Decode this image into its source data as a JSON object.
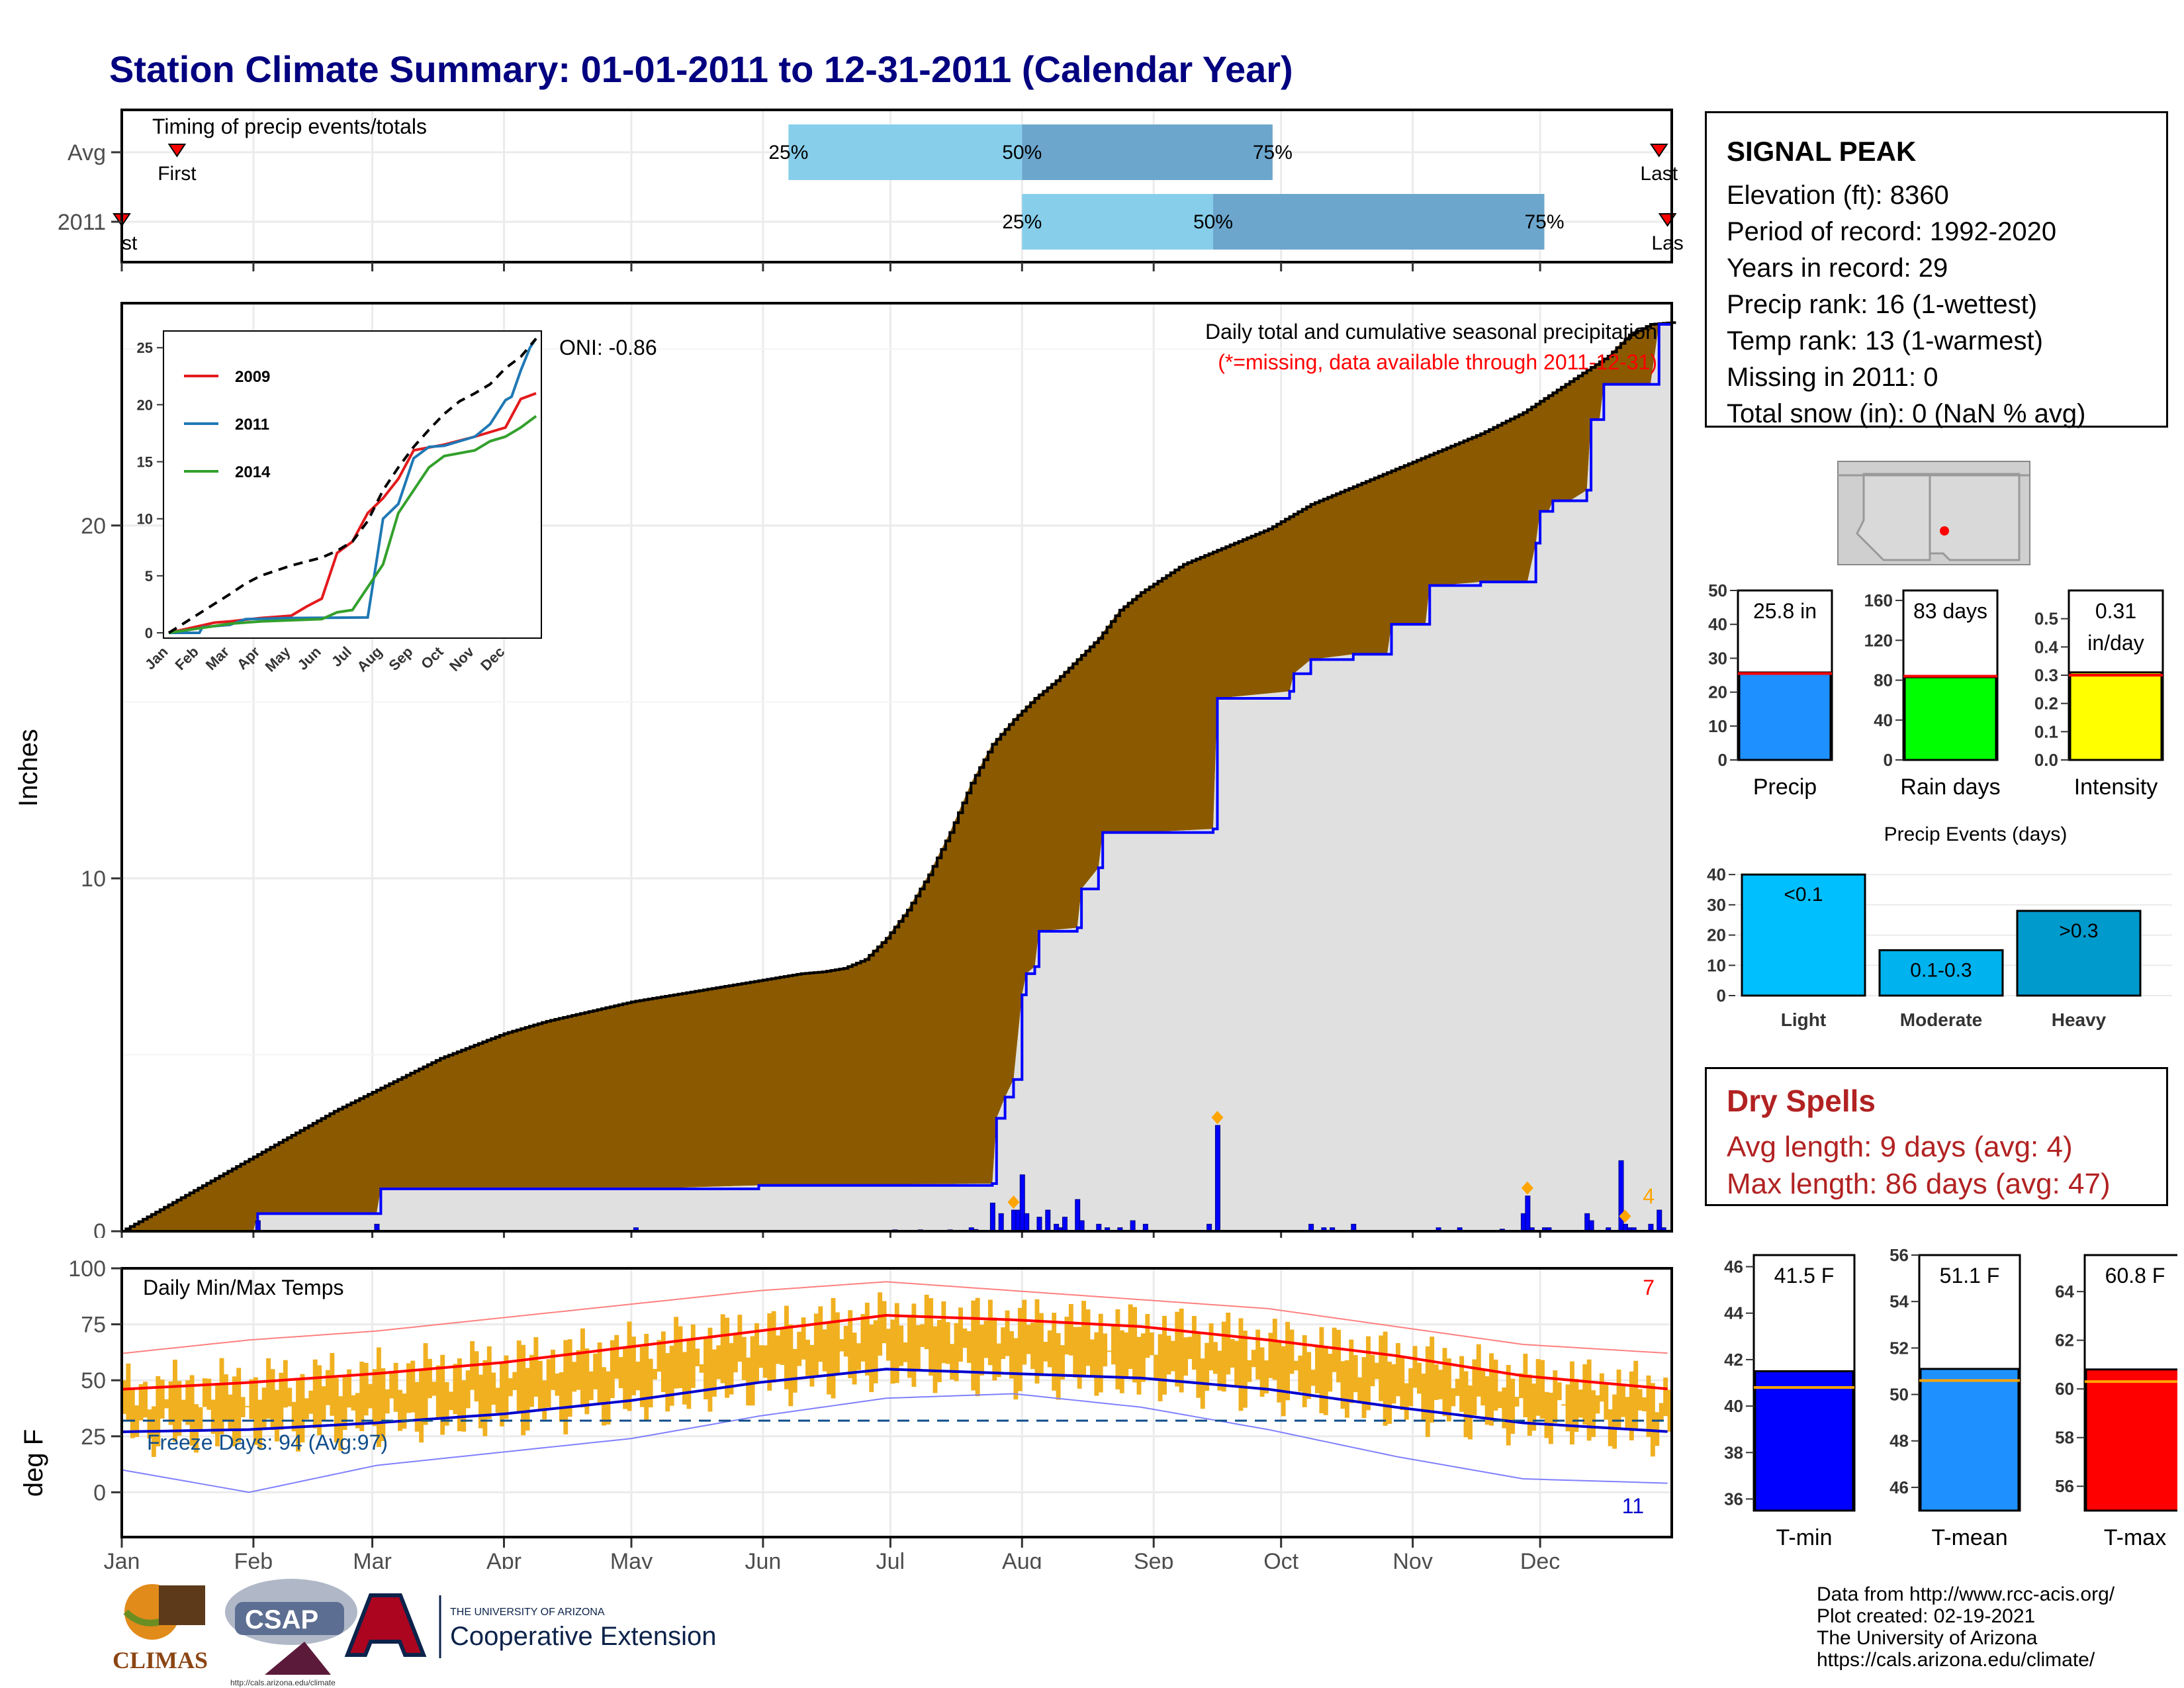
{
  "title": "Station Climate Summary: 01-01-2011 to 12-31-2011 (Calendar Year)",
  "station_info": {
    "name": "SIGNAL PEAK",
    "lines": [
      "Elevation (ft): 8360",
      "Period of record: 1992-2020",
      "Years in record: 29",
      "Precip rank: 16 (1-wettest)",
      "Temp rank: 13 (1-warmest)",
      "Missing in 2011: 0",
      "Total snow (in): 0 (NaN % avg)"
    ]
  },
  "dry_spells": {
    "title": "Dry Spells",
    "avg": "Avg length: 9 days (avg: 4)",
    "max": "Max length: 86 days (avg: 47)"
  },
  "credits": [
    "Data from http://www.rcc-acis.org/",
    "Plot created: 02-19-2021",
    "The University of Arizona",
    "https://cals.arizona.edu/climate/"
  ],
  "logos": {
    "climas": "CLIMAS",
    "csap": "CSAP",
    "csap_url": "http://cals.arizona.edu/climate",
    "ua_small": "THE UNIVERSITY OF ARIZONA",
    "coop": "Cooperative Extension"
  },
  "colors": {
    "title": "#000080",
    "precip_fill": "#8B5A00",
    "cum_line": "#0000FF",
    "tmax": "#FF0000",
    "tmin": "#0000CD",
    "temp_bar": "#F0B020",
    "q_light": "#87CEEB",
    "q_dark": "#6CA6CD",
    "dry": "#B22222"
  },
  "chart_data": [
    {
      "id": "timing",
      "type": "bar",
      "title": "Timing of precip events/totals",
      "rows": [
        {
          "label": "Avg",
          "first": "Jan 14",
          "q25": "Jun 7",
          "q50": "Aug 1",
          "q75": "Sep 29",
          "last": "Dec 29"
        },
        {
          "label": "2011",
          "first": "Jan 1",
          "q25": "Aug 1",
          "q50": "Sep 15",
          "q75": "Dec 2",
          "last": "Dec 31"
        }
      ],
      "labels": {
        "first": "First",
        "last": "Last",
        "q25": "25%",
        "q50": "50%",
        "q75": "75%"
      },
      "first_label_2011": "st",
      "last_label_2011": "Las",
      "xlim": [
        "2011-01-01",
        "2011-12-31"
      ]
    },
    {
      "id": "precip",
      "type": "area",
      "title": "Daily total and cumulative seasonal precipitation",
      "subtitle": "(*=missing, data available through 2011-12-31)",
      "oni": "ONI: -0.86",
      "ylabel": "Inches",
      "ylim": [
        0,
        26.3
      ],
      "yticks": [
        0,
        10,
        20
      ],
      "avg_cumulative": {
        "doy": [
          0,
          25,
          50,
          75,
          90,
          100,
          120,
          145,
          155,
          160,
          165,
          170,
          175,
          180,
          185,
          190,
          195,
          200,
          205,
          210,
          215,
          220,
          225,
          230,
          235,
          240,
          250,
          260,
          270,
          280,
          290,
          300,
          310,
          320,
          330,
          340,
          350,
          355,
          360,
          365
        ],
        "values": [
          0,
          1.7,
          3.4,
          4.9,
          5.6,
          5.95,
          6.5,
          7.0,
          7.2,
          7.3,
          7.35,
          7.45,
          7.7,
          8.3,
          9.1,
          10.1,
          11.3,
          12.7,
          13.8,
          14.5,
          15.1,
          15.6,
          16.2,
          16.8,
          17.6,
          18.1,
          18.9,
          19.4,
          19.9,
          20.6,
          21.1,
          21.6,
          22.1,
          22.6,
          23.2,
          24.0,
          24.8,
          25.4,
          25.7,
          25.75
        ]
      },
      "cumulative_2011": {
        "doy": [
          0,
          31,
          32,
          60,
          61,
          121,
          150,
          205,
          206,
          208,
          210,
          212,
          213,
          215,
          216,
          225,
          226,
          230,
          231,
          240,
          257,
          258,
          275,
          276,
          280,
          290,
          298,
          299,
          303,
          307,
          308,
          310,
          320,
          331,
          333,
          334,
          336,
          337,
          341,
          345,
          346,
          348,
          349,
          360,
          362,
          365
        ],
        "values": [
          0,
          0,
          0.5,
          0.5,
          1.2,
          1.2,
          1.3,
          1.35,
          3.2,
          3.8,
          4.3,
          6.7,
          7.3,
          7.5,
          8.5,
          8.6,
          9.7,
          10.3,
          11.3,
          11.3,
          11.4,
          15.1,
          15.3,
          15.8,
          16.2,
          16.35,
          16.35,
          17.2,
          17.2,
          17.2,
          18.3,
          18.3,
          18.4,
          18.4,
          19.5,
          20.4,
          20.4,
          20.7,
          20.7,
          21.0,
          23.0,
          23.0,
          24.0,
          24.0,
          25.7,
          25.8
        ]
      },
      "daily_doy": [
        32,
        60,
        121,
        182,
        188,
        195,
        200,
        201,
        205,
        207,
        210,
        211,
        212,
        213,
        216,
        218,
        220,
        221,
        222,
        225,
        226,
        230,
        232,
        235,
        238,
        241,
        256,
        258,
        280,
        283,
        285,
        290,
        310,
        315,
        325,
        330,
        331,
        332,
        335,
        336,
        345,
        346,
        350,
        353,
        354,
        355,
        356,
        360,
        362,
        363
      ],
      "daily_values": [
        0.3,
        0.2,
        0.1,
        0.04,
        0.04,
        0.04,
        0.1,
        0.05,
        0.8,
        0.5,
        0.6,
        0.6,
        1.6,
        0.5,
        0.4,
        0.6,
        0.2,
        0.1,
        0.4,
        0.9,
        0.3,
        0.2,
        0.1,
        0.1,
        0.3,
        0.2,
        0.2,
        3.0,
        0.2,
        0.1,
        0.1,
        0.2,
        0.1,
        0.1,
        0.06,
        0.5,
        1.0,
        0.1,
        0.1,
        0.1,
        0.5,
        0.3,
        0.1,
        2.0,
        0.2,
        0.1,
        0.1,
        0.2,
        0.6,
        0.1
      ],
      "markers_doy": [
        210,
        258,
        331,
        354
      ],
      "corner_count": "4"
    },
    {
      "id": "inset",
      "type": "line",
      "x_ticks": [
        "Jan",
        "Feb",
        "Mar",
        "Apr",
        "May",
        "Jun",
        "Jul",
        "Aug",
        "Sep",
        "Oct",
        "Nov",
        "Dec"
      ],
      "y_ticks": [
        0,
        5,
        10,
        15,
        20,
        25
      ],
      "ylim": [
        0,
        26
      ],
      "series": [
        {
          "name": "2009",
          "color": "#E31A1C",
          "months": [
            0,
            0.5,
            1,
            1.5,
            2,
            3,
            4,
            4.5,
            5,
            5.5,
            6,
            6.5,
            7,
            7.5,
            8,
            9,
            10,
            11,
            11.5,
            12
          ],
          "values": [
            0,
            0.3,
            0.6,
            0.9,
            1.0,
            1.3,
            1.5,
            2.3,
            3.0,
            7.0,
            8.0,
            10.5,
            11.8,
            13.5,
            16.0,
            16.5,
            17.2,
            18.0,
            20.5,
            21.0
          ]
        },
        {
          "name": "2011",
          "color": "#1F78B4",
          "months": [
            0,
            1,
            1.1,
            2,
            2.5,
            4,
            6.5,
            6.8,
            7.0,
            7.5,
            8.0,
            8.5,
            9.0,
            10.0,
            10.5,
            11.0,
            11.2,
            11.5,
            11.8,
            12
          ],
          "values": [
            0,
            0,
            0.5,
            0.7,
            1.2,
            1.3,
            1.35,
            6.5,
            10.0,
            11.3,
            15.3,
            16.3,
            16.4,
            17.2,
            18.3,
            20.4,
            20.7,
            23.0,
            25.0,
            25.8
          ]
        },
        {
          "name": "2014",
          "color": "#33A02C",
          "months": [
            0,
            1,
            2,
            3,
            4,
            5,
            5.5,
            6,
            6.5,
            7,
            7.5,
            8,
            8.5,
            9,
            10,
            10.5,
            11,
            11.5,
            12
          ],
          "values": [
            0,
            0.4,
            0.8,
            1.0,
            1.1,
            1.2,
            1.8,
            2.0,
            4.0,
            6.0,
            10.5,
            12.5,
            14.5,
            15.5,
            16.0,
            16.8,
            17.2,
            18.0,
            19.0
          ]
        },
        {
          "name": "",
          "color": "#000000",
          "months": [
            0,
            1,
            2,
            2.5,
            3,
            4,
            5,
            5.5,
            6,
            6.5,
            7,
            7.5,
            8,
            8.5,
            9,
            9.5,
            10,
            10.5,
            11,
            11.5,
            12
          ],
          "values": [
            0,
            1.7,
            3.4,
            4.3,
            5.0,
            5.9,
            6.6,
            7.2,
            8.0,
            9.8,
            12.5,
            14.5,
            16.3,
            17.8,
            19.2,
            20.3,
            21.0,
            21.8,
            23.2,
            24.2,
            25.8
          ]
        }
      ]
    },
    {
      "id": "temps",
      "type": "bar",
      "title": "Daily Min/Max Temps",
      "ylabel": "deg F",
      "ylim": [
        -20,
        100
      ],
      "yticks": [
        0,
        25,
        50,
        75,
        100
      ],
      "x_ticks": [
        "Jan",
        "Feb",
        "Mar",
        "Apr",
        "May",
        "Jun",
        "Jul",
        "Aug",
        "Sep",
        "Oct",
        "Nov",
        "Dec"
      ],
      "freeze_text": "Freeze Days: 94 (Avg:97)",
      "freeze_line": 32,
      "tmax_count": "7",
      "tmin_count": "11",
      "avg_tmax": {
        "doy": [
          0,
          30,
          60,
          90,
          120,
          150,
          180,
          210,
          240,
          270,
          300,
          330,
          365
        ],
        "values": [
          46,
          49,
          53,
          58,
          65,
          72,
          79,
          77,
          74,
          68,
          61,
          52,
          46
        ]
      },
      "avg_tmin": {
        "doy": [
          0,
          30,
          60,
          90,
          120,
          150,
          180,
          210,
          240,
          270,
          300,
          330,
          365
        ],
        "values": [
          27,
          28,
          31,
          35,
          41,
          49,
          55,
          53,
          51,
          46,
          38,
          31,
          27
        ]
      },
      "record_high": {
        "doy": [
          0,
          30,
          60,
          90,
          120,
          150,
          180,
          210,
          240,
          270,
          300,
          330,
          365
        ],
        "values": [
          62,
          68,
          72,
          78,
          84,
          90,
          94,
          90,
          86,
          82,
          74,
          66,
          62
        ]
      },
      "record_low": {
        "doy": [
          0,
          30,
          60,
          90,
          120,
          150,
          180,
          210,
          240,
          270,
          300,
          330,
          365
        ],
        "values": [
          10,
          0,
          12,
          18,
          24,
          34,
          42,
          44,
          38,
          28,
          16,
          6,
          4
        ]
      }
    },
    {
      "id": "precip_bars",
      "type": "bar",
      "categories": [
        "Precip",
        "Rain days",
        "Intensity"
      ],
      "values": [
        25.8,
        83,
        0.31
      ],
      "labels": [
        "25.8 in",
        "83 days",
        "0.31 in/day"
      ],
      "averages": [
        25.5,
        84,
        0.3
      ],
      "ylims": [
        [
          0,
          50
        ],
        [
          0,
          170
        ],
        [
          0,
          0.6
        ]
      ],
      "yticks": [
        [
          "0",
          "10",
          "20",
          "30",
          "40",
          "50"
        ],
        [
          "0",
          "40",
          "80",
          "120",
          "160"
        ],
        [
          "0.0",
          "0.1",
          "0.2",
          "0.3",
          "0.4",
          "0.5"
        ]
      ],
      "colors": [
        "#1E90FF",
        "#00FF00",
        "#FFFF00"
      ]
    },
    {
      "id": "precip_events",
      "type": "bar",
      "title": "Precip Events (days)",
      "categories": [
        "Light",
        "Moderate",
        "Heavy"
      ],
      "values": [
        40,
        15,
        28
      ],
      "labels": [
        "<0.1",
        "0.1-0.3",
        ">0.3"
      ],
      "ylim": [
        0,
        42
      ],
      "yticks": [
        0,
        10,
        20,
        30,
        40
      ],
      "colors": [
        "#00BFFF",
        "#00B2EE",
        "#009ACD"
      ]
    },
    {
      "id": "temp_bars",
      "type": "bar",
      "categories": [
        "T-min",
        "T-mean",
        "T-max"
      ],
      "values": [
        41.5,
        51.1,
        60.8
      ],
      "labels": [
        "41.5 F",
        "51.1 F",
        "60.8 F"
      ],
      "averages": [
        40.8,
        50.6,
        60.3
      ],
      "ylims": [
        [
          35.5,
          46.5
        ],
        [
          45,
          56
        ],
        [
          55,
          65.5
        ]
      ],
      "yticks": [
        [
          36,
          38,
          40,
          42,
          44,
          46
        ],
        [
          46,
          48,
          50,
          52,
          54,
          56
        ],
        [
          56,
          58,
          60,
          62,
          64
        ]
      ],
      "colors": [
        "#0000FF",
        "#1E90FF",
        "#FF0000"
      ]
    }
  ]
}
